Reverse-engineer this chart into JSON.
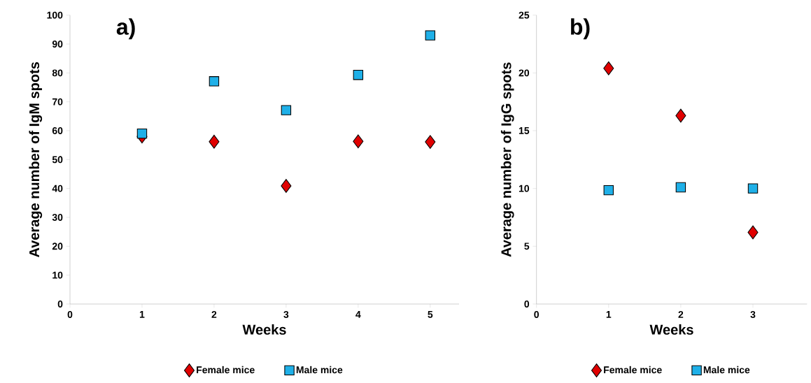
{
  "chart_data": [
    {
      "type": "scatter",
      "title": "a)",
      "xlabel": "Weeks",
      "ylabel": "Average number of IgM spots",
      "x": [
        1,
        2,
        3,
        4,
        5
      ],
      "series": [
        {
          "name": "Female mice",
          "color": "#e00000",
          "marker": "diamond",
          "values": [
            58.0,
            56.2,
            40.9,
            56.3,
            56.1
          ]
        },
        {
          "name": "Male mice",
          "color": "#1fb0e8",
          "marker": "square",
          "values": [
            59.0,
            77.1,
            67.1,
            79.3,
            93.0
          ]
        }
      ],
      "xlim": [
        0,
        5.4
      ],
      "xticks": [
        0,
        1,
        2,
        3,
        4,
        5
      ],
      "ylim": [
        0,
        100
      ],
      "yticks": [
        0,
        10,
        20,
        30,
        40,
        50,
        60,
        70,
        80,
        90,
        100
      ],
      "grid": false,
      "legend": "bottom"
    },
    {
      "type": "scatter",
      "title": "b)",
      "xlabel": "Weeks",
      "ylabel": "Average number of IgG spots",
      "x": [
        1,
        2,
        3
      ],
      "series": [
        {
          "name": "Female mice",
          "color": "#e00000",
          "marker": "diamond",
          "values": [
            20.4,
            16.3,
            6.2
          ]
        },
        {
          "name": "Male mice",
          "color": "#1fb0e8",
          "marker": "square",
          "values": [
            9.85,
            10.1,
            10.0
          ]
        }
      ],
      "xlim": [
        0,
        3.75
      ],
      "xticks": [
        0,
        1,
        2,
        3
      ],
      "ylim": [
        0,
        25
      ],
      "yticks": [
        0,
        5,
        10,
        15,
        20,
        25
      ],
      "grid": false,
      "legend": "bottom"
    }
  ]
}
